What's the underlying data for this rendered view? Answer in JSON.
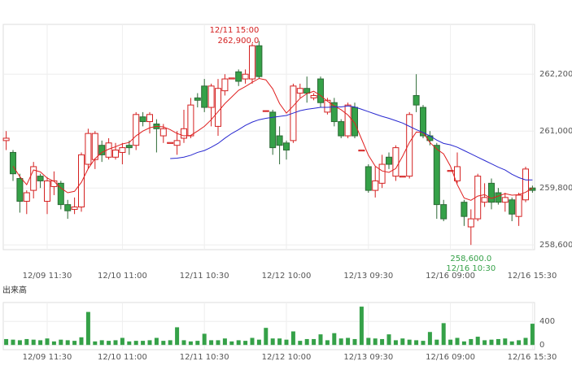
{
  "chart_data": {
    "type": "candlestick",
    "categories": [
      null,
      null,
      null,
      null,
      null,
      null,
      "12/09 11:30",
      null,
      null,
      null,
      null,
      null,
      null,
      null,
      null,
      null,
      null,
      "12/10 11:00",
      null,
      null,
      null,
      null,
      null,
      null,
      null,
      null,
      null,
      null,
      null,
      "12/11 10:30",
      null,
      null,
      null,
      null,
      null,
      null,
      null,
      null,
      null,
      null,
      null,
      "12/12 10:00",
      null,
      null,
      null,
      null,
      null,
      null,
      null,
      null,
      null,
      null,
      null,
      "12/13 09:30",
      null,
      null,
      null,
      null,
      null,
      null,
      null,
      null,
      null,
      null,
      null,
      "12/16 09:00",
      null,
      null,
      null,
      null,
      null,
      null,
      null,
      null,
      null,
      null,
      null,
      "12/16 15:30"
    ],
    "open": [
      260800,
      260550,
      260000,
      259520,
      259750,
      260050,
      259520,
      259830,
      259900,
      259450,
      259350,
      259400,
      260300,
      260400,
      260700,
      260450,
      260450,
      260550,
      260700,
      260700,
      261300,
      261200,
      261150,
      260900,
      260740,
      260700,
      260850,
      260900,
      261700,
      261950,
      261500,
      261100,
      261850,
      262100,
      262250,
      262100,
      262100,
      262800,
      261420,
      261400,
      260900,
      260750,
      260800,
      261800,
      261900,
      261700,
      262100,
      261400,
      261600,
      261200,
      260900,
      261500,
      260580,
      260250,
      259750,
      259900,
      260450,
      260050,
      260030,
      260050,
      261750,
      261500,
      260900,
      260700,
      259450,
      260150,
      259950,
      259500,
      258980,
      259150,
      259500,
      259900,
      259700,
      259500,
      259550,
      259200,
      259550,
      259800
    ],
    "high": [
      261000,
      260600,
      260100,
      259750,
      260350,
      260100,
      260030,
      260150,
      259950,
      259550,
      259600,
      260550,
      261050,
      261000,
      260800,
      260850,
      260750,
      260750,
      260800,
      261400,
      261400,
      261400,
      261250,
      261150,
      260760,
      261000,
      261450,
      261700,
      261800,
      262100,
      262000,
      262100,
      262200,
      262120,
      262300,
      262300,
      262850,
      262900,
      261430,
      261450,
      261100,
      260800,
      262000,
      262000,
      262150,
      261800,
      262150,
      261700,
      261700,
      261250,
      261600,
      261600,
      260600,
      260300,
      260250,
      260500,
      260550,
      260700,
      260050,
      261400,
      262200,
      261550,
      261000,
      260750,
      259550,
      260170,
      260550,
      259550,
      259350,
      260100,
      259900,
      260000,
      259800,
      259700,
      259600,
      259700,
      260250,
      259850
    ],
    "low": [
      260600,
      259950,
      259280,
      259250,
      259580,
      259800,
      259250,
      259650,
      259350,
      259150,
      259250,
      259300,
      260200,
      260200,
      260350,
      260400,
      260400,
      260300,
      260500,
      260600,
      261100,
      260950,
      260550,
      260750,
      260740,
      260500,
      260750,
      260850,
      261500,
      261400,
      261100,
      260900,
      261750,
      262100,
      261950,
      262000,
      262000,
      262100,
      261420,
      260500,
      260300,
      260400,
      260750,
      261700,
      261600,
      261650,
      261500,
      261350,
      261100,
      260850,
      260850,
      260850,
      260580,
      259700,
      259600,
      259800,
      260200,
      259950,
      260030,
      260000,
      261400,
      260850,
      260700,
      259150,
      259100,
      260150,
      259900,
      259000,
      258600,
      259100,
      259400,
      259350,
      259450,
      259300,
      259100,
      259000,
      259500,
      259700
    ],
    "close": [
      260850,
      260100,
      259520,
      259700,
      260250,
      259950,
      259950,
      259950,
      259450,
      259320,
      259400,
      260500,
      260950,
      260950,
      260500,
      260750,
      260600,
      260650,
      260650,
      261350,
      261200,
      261350,
      261050,
      261050,
      260760,
      260800,
      261050,
      261550,
      261650,
      261500,
      261950,
      261900,
      262100,
      262120,
      262050,
      262200,
      262800,
      262150,
      261430,
      260650,
      260700,
      260600,
      261950,
      261900,
      261800,
      261750,
      261600,
      261650,
      261200,
      260900,
      261550,
      260900,
      260600,
      259750,
      259950,
      260300,
      260300,
      260650,
      260050,
      261350,
      261550,
      260900,
      260800,
      259450,
      259150,
      260170,
      260250,
      259200,
      259150,
      260050,
      259600,
      259500,
      259500,
      259600,
      259250,
      259650,
      260200,
      259750
    ],
    "up_color": "#d42020",
    "down_color": "#35a148",
    "ylim": [
      258500,
      263250
    ],
    "yticks": [
      {
        "value": 258600,
        "label": "258,600"
      },
      {
        "value": 259800,
        "label": "259,800"
      },
      {
        "value": 261000,
        "label": "261,000"
      },
      {
        "value": 262200,
        "label": "262,200"
      }
    ],
    "grid": true,
    "moving_averages": [
      {
        "color": "#e02020",
        "values": [
          null,
          260260,
          260040,
          259870,
          260180,
          260140,
          260010,
          259940,
          259800,
          259700,
          259730,
          259920,
          260210,
          260420,
          260550,
          260620,
          260670,
          260730,
          260760,
          260900,
          261000,
          261070,
          261100,
          261090,
          261030,
          260950,
          260900,
          260910,
          261000,
          261100,
          261240,
          261410,
          261580,
          261720,
          261860,
          261940,
          262030,
          262110,
          262080,
          261890,
          261580,
          261380,
          261530,
          261690,
          261790,
          261840,
          261750,
          261630,
          261530,
          261450,
          261340,
          261170,
          260830,
          260490,
          260260,
          260160,
          260130,
          260210,
          260470,
          260760,
          260980,
          260970,
          260760,
          260620,
          260520,
          260260,
          259870,
          259590,
          259540,
          259630,
          259660,
          259580,
          259630,
          259680,
          259650,
          259660,
          259710,
          259800
        ]
      },
      {
        "color": "#2828d0",
        "values": [
          null,
          null,
          null,
          null,
          null,
          null,
          null,
          null,
          null,
          null,
          null,
          null,
          null,
          null,
          null,
          null,
          null,
          null,
          null,
          null,
          null,
          null,
          null,
          null,
          260420,
          260430,
          260450,
          260490,
          260550,
          260590,
          260660,
          260740,
          260850,
          260950,
          261030,
          261120,
          261190,
          261240,
          261270,
          261290,
          261310,
          261330,
          261380,
          261430,
          261460,
          261480,
          261500,
          261500,
          261510,
          261510,
          261530,
          261510,
          261460,
          261410,
          261360,
          261310,
          261270,
          261220,
          261170,
          261100,
          261030,
          260970,
          260900,
          260810,
          260740,
          260710,
          260660,
          260590,
          260520,
          260450,
          260380,
          260310,
          260240,
          260180,
          260090,
          260020,
          259970,
          259970
        ]
      }
    ],
    "max_annotation": {
      "time": "12/11 15:00",
      "price": {
        "value": 262900,
        "label": "262,900.0"
      }
    },
    "min_annotation": {
      "time": "12/16 10:30",
      "price": {
        "value": 258600,
        "label": "258,600.0"
      }
    },
    "volume": {
      "title": "出来高",
      "color": "#35a148",
      "values": [
        100,
        90,
        80,
        100,
        90,
        80,
        110,
        60,
        90,
        80,
        70,
        130,
        560,
        60,
        80,
        70,
        80,
        120,
        60,
        70,
        70,
        80,
        120,
        70,
        80,
        300,
        80,
        60,
        70,
        190,
        80,
        80,
        110,
        60,
        80,
        70,
        120,
        90,
        290,
        110,
        110,
        90,
        230,
        70,
        100,
        100,
        180,
        80,
        200,
        110,
        120,
        100,
        650,
        120,
        110,
        100,
        180,
        80,
        110,
        90,
        80,
        70,
        220,
        90,
        370,
        90,
        120,
        60,
        100,
        140,
        80,
        90,
        100,
        110,
        60,
        80,
        120,
        360
      ],
      "ylim": [
        -80,
        720
      ],
      "yticks": [
        0,
        400
      ]
    }
  }
}
